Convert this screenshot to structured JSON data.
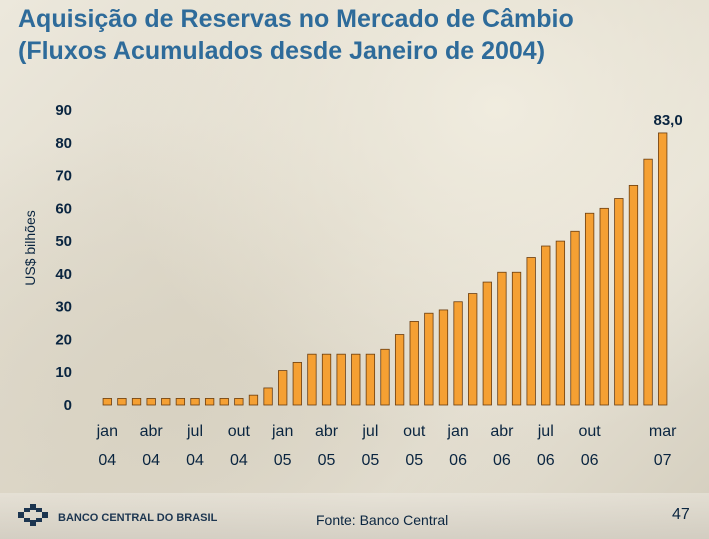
{
  "slide": {
    "title_line1": "Aquisição de Reservas no Mercado de Câmbio",
    "title_line2": "(Fluxos Acumulados desde Janeiro de 2004)",
    "source": "Fonte: Banco Central",
    "page_number": "47",
    "logo_text": "BANCO CENTRAL DO BRASIL"
  },
  "colors": {
    "title": "#2e6b9a",
    "bar_fill": "#f5a033",
    "bar_stroke": "#6a3d10",
    "axis_text": "#0a2540"
  },
  "chart_data": {
    "type": "bar",
    "title": "",
    "xlabel": "",
    "ylabel": "US$ bilhões",
    "ylim": [
      0,
      90
    ],
    "y_ticks": [
      0,
      10,
      20,
      30,
      40,
      50,
      60,
      70,
      80,
      90
    ],
    "grid": false,
    "categories": [
      "jan/04",
      "fev/04",
      "mar/04",
      "abr/04",
      "mai/04",
      "jun/04",
      "jul/04",
      "ago/04",
      "set/04",
      "out/04",
      "nov/04",
      "dez/04",
      "jan/05",
      "fev/05",
      "mar/05",
      "abr/05",
      "mai/05",
      "jun/05",
      "jul/05",
      "ago/05",
      "set/05",
      "out/05",
      "nov/05",
      "dez/05",
      "jan/06",
      "fev/06",
      "mar/06",
      "abr/06",
      "mai/06",
      "jun/06",
      "jul/06",
      "ago/06",
      "set/06",
      "out/06",
      "nov/06",
      "dez/06",
      "jan/07",
      "fev/07",
      "mar/07"
    ],
    "values": [
      2.0,
      2.0,
      2.0,
      2.0,
      2.0,
      2.0,
      2.0,
      2.0,
      2.0,
      2.0,
      3.0,
      5.2,
      10.5,
      13.0,
      15.5,
      15.5,
      15.5,
      15.5,
      15.5,
      17.0,
      21.5,
      25.5,
      28.0,
      29.0,
      31.5,
      34.0,
      37.5,
      40.5,
      40.5,
      45.0,
      48.5,
      50.0,
      53.0,
      58.5,
      60.0,
      63.0,
      67.0,
      75.0,
      83.0
    ],
    "x_tick_labels": [
      {
        "index": 0,
        "month": "jan",
        "year": "04"
      },
      {
        "index": 3,
        "month": "abr",
        "year": "04"
      },
      {
        "index": 6,
        "month": "jul",
        "year": "04"
      },
      {
        "index": 9,
        "month": "out",
        "year": "04"
      },
      {
        "index": 12,
        "month": "jan",
        "year": "05"
      },
      {
        "index": 15,
        "month": "abr",
        "year": "05"
      },
      {
        "index": 18,
        "month": "jul",
        "year": "05"
      },
      {
        "index": 21,
        "month": "out",
        "year": "05"
      },
      {
        "index": 24,
        "month": "jan",
        "year": "06"
      },
      {
        "index": 27,
        "month": "abr",
        "year": "06"
      },
      {
        "index": 30,
        "month": "jul",
        "year": "06"
      },
      {
        "index": 33,
        "month": "out",
        "year": "06"
      },
      {
        "index": 38,
        "month": "mar",
        "year": "07"
      }
    ],
    "annotations": [
      {
        "index": 38,
        "text": "83,0"
      }
    ]
  }
}
